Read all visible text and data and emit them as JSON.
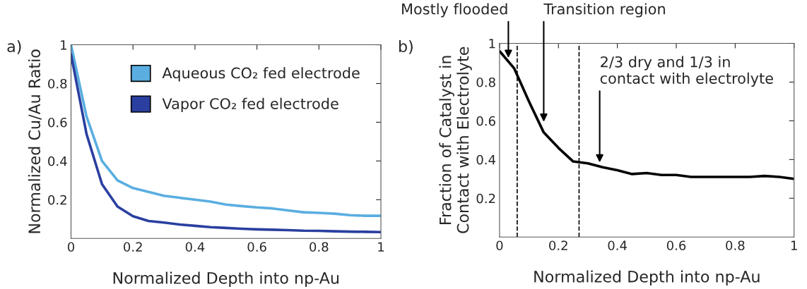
{
  "chart_data": [
    {
      "type": "line",
      "xlabel": "Normalized Depth into np-Au",
      "ylabel": "Normalized Cu/Au Ratio",
      "x": [
        0,
        0.05,
        0.1,
        0.15,
        0.2,
        0.25,
        0.3,
        0.35,
        0.4,
        0.45,
        0.5,
        0.55,
        0.6,
        0.65,
        0.7,
        0.75,
        0.8,
        0.85,
        0.9,
        0.95,
        1
      ],
      "series": [
        {
          "name": "Aqueous CO₂ fed electrode",
          "color": "#5aaee0",
          "values": [
            1.0,
            0.63,
            0.4,
            0.3,
            0.26,
            0.24,
            0.22,
            0.21,
            0.2,
            0.19,
            0.175,
            0.167,
            0.16,
            0.155,
            0.145,
            0.135,
            0.132,
            0.128,
            0.12,
            0.117,
            0.117
          ]
        },
        {
          "name": "Vapor CO₂ fed electrode",
          "color": "#2a3fa0",
          "values": [
            0.95,
            0.54,
            0.28,
            0.165,
            0.115,
            0.09,
            0.082,
            0.072,
            0.065,
            0.058,
            0.054,
            0.05,
            0.047,
            0.045,
            0.043,
            0.04,
            0.039,
            0.037,
            0.035,
            0.034,
            0.033
          ]
        }
      ],
      "xlim": [
        0,
        1
      ],
      "ylim": [
        0,
        1
      ],
      "xticks": [
        0,
        0.2,
        0.4,
        0.6,
        0.8,
        1
      ],
      "yticks": [
        0.2,
        0.4,
        0.6,
        0.8,
        1
      ],
      "legend": "top right",
      "grid": false,
      "annotations": [
        "a)"
      ]
    },
    {
      "type": "line",
      "xlabel": "Normalized Depth into np-Au",
      "ylabel": "Fraction of Catalyst in\nContact with Electrolyte",
      "x": [
        0,
        0.05,
        0.1,
        0.15,
        0.2,
        0.25,
        0.3,
        0.35,
        0.4,
        0.45,
        0.5,
        0.55,
        0.6,
        0.65,
        0.7,
        0.75,
        0.8,
        0.85,
        0.9,
        0.95,
        1
      ],
      "series": [
        {
          "color": "#000000",
          "values": [
            0.96,
            0.87,
            0.7,
            0.54,
            0.46,
            0.39,
            0.38,
            0.36,
            0.345,
            0.325,
            0.33,
            0.32,
            0.32,
            0.31,
            0.31,
            0.31,
            0.31,
            0.31,
            0.315,
            0.31,
            0.3
          ]
        }
      ],
      "xlim": [
        0,
        1
      ],
      "ylim": [
        0,
        1
      ],
      "xticks": [
        0,
        0.2,
        0.4,
        0.6,
        0.8,
        1
      ],
      "yticks": [
        0.2,
        0.4,
        0.6,
        0.8,
        1
      ],
      "grid": false,
      "ref_lines": [
        {
          "axis": "x",
          "value": 0.06,
          "color": "#000000",
          "line_style": "dashed"
        },
        {
          "axis": "x",
          "value": 0.27,
          "color": "#000000",
          "line_style": "dashed"
        }
      ],
      "annotations": [
        "b)",
        {
          "text": "Mostly flooded",
          "x": 0.03,
          "y": 0.92
        },
        {
          "text": "Transition region",
          "x": 0.15,
          "y": 0.59
        },
        {
          "text": "2/3 dry and 1/3 in\ncontact with electrolyte",
          "x": 0.34,
          "y": 0.38
        }
      ]
    }
  ]
}
